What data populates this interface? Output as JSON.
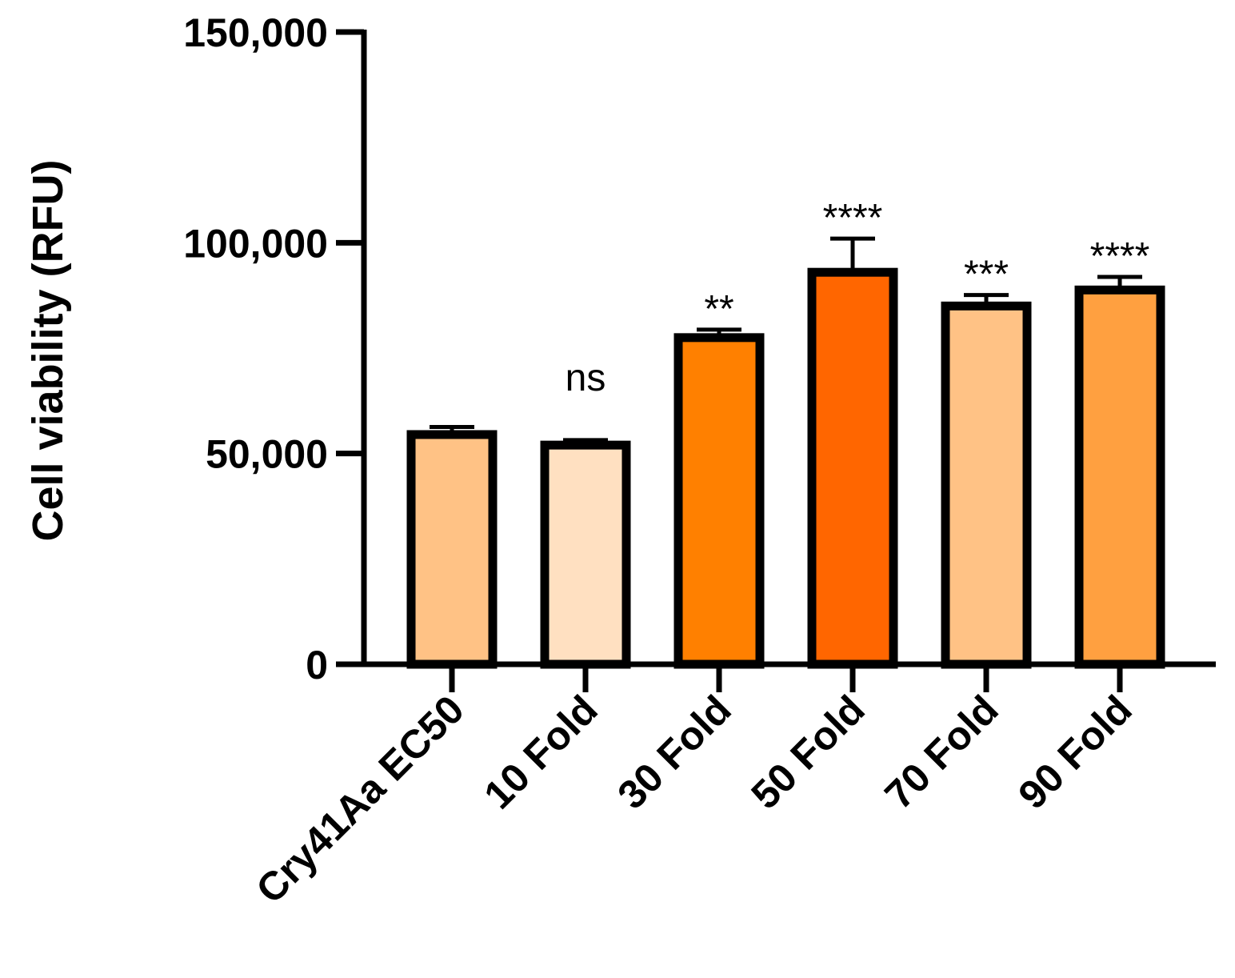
{
  "chart_data": {
    "type": "bar",
    "title": "",
    "xlabel": "",
    "ylabel": "Cell viability (RFU)",
    "ylim": [
      0,
      150000
    ],
    "yticks": [
      0,
      50000,
      100000,
      150000
    ],
    "ytick_labels": [
      "0",
      "50,000",
      "100,000",
      "150,000"
    ],
    "categories": [
      "Cry41Aa EC50",
      "10 Fold",
      "30 Fold",
      "50 Fold",
      "70 Fold",
      "90 Fold"
    ],
    "values": [
      54500,
      52000,
      77500,
      93000,
      85000,
      88800
    ],
    "errors": [
      1800,
      1200,
      1900,
      8000,
      2600,
      3100
    ],
    "significance": [
      "",
      "ns",
      "**",
      "****",
      "***",
      "****"
    ],
    "colors": [
      "#FFC285",
      "#FFE0C1",
      "#FF8000",
      "#FF6600",
      "#FFC285",
      "#FFA040"
    ],
    "grid": false,
    "legend": "none"
  }
}
